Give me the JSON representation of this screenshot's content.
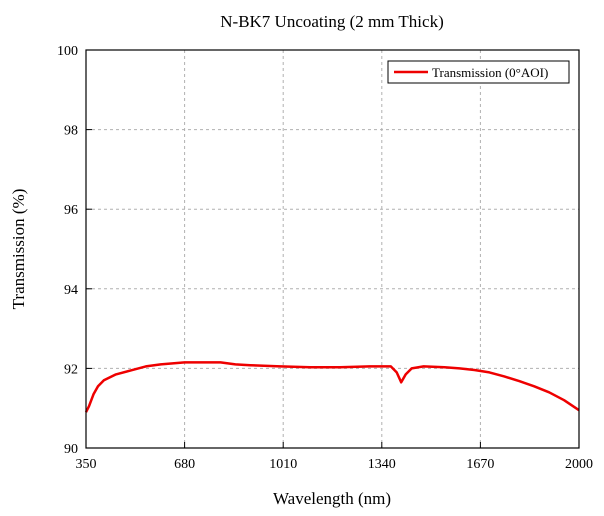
{
  "chart_data": {
    "type": "line",
    "title": "N-BK7 Uncoating (2 mm  Thick)",
    "xlabel": "Wavelength (nm)",
    "ylabel": "Transmission (%)",
    "xlim": [
      350,
      2000
    ],
    "ylim": [
      90,
      100
    ],
    "xticks": [
      "350",
      "680",
      "1010",
      "1340",
      "1670",
      "2000"
    ],
    "yticks": [
      "90",
      "92",
      "94",
      "96",
      "98",
      "100"
    ],
    "grid": true,
    "legend_position": "top-right",
    "series": [
      {
        "name": "Transmission (0°AOI)",
        "color": "#ee0000",
        "x": [
          350,
          360,
          375,
          390,
          410,
          450,
          500,
          550,
          600,
          680,
          750,
          800,
          850,
          900,
          1000,
          1100,
          1200,
          1300,
          1370,
          1390,
          1405,
          1420,
          1440,
          1480,
          1550,
          1600,
          1650,
          1700,
          1750,
          1800,
          1850,
          1900,
          1950,
          2000
        ],
        "y": [
          90.9,
          91.05,
          91.35,
          91.55,
          91.7,
          91.85,
          91.95,
          92.05,
          92.1,
          92.15,
          92.15,
          92.15,
          92.1,
          92.08,
          92.05,
          92.03,
          92.03,
          92.05,
          92.05,
          91.9,
          91.65,
          91.85,
          92.0,
          92.05,
          92.03,
          92.0,
          91.96,
          91.9,
          91.8,
          91.68,
          91.55,
          91.4,
          91.2,
          90.95
        ]
      }
    ]
  }
}
